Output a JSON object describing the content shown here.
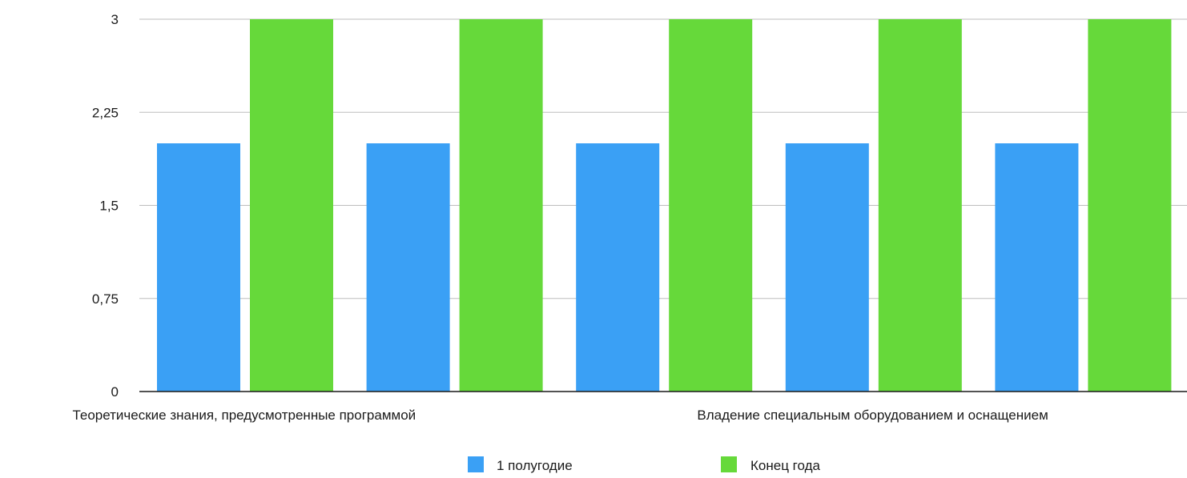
{
  "chart_data": {
    "type": "bar",
    "categories": [
      "Теоретические знания, предусмотренные программой",
      "",
      "",
      "Владение специальным оборудованием и оснащением",
      ""
    ],
    "series": [
      {
        "name": "1 полугодие",
        "color": "#3aa0f5",
        "values": [
          2,
          2,
          2,
          2,
          2
        ]
      },
      {
        "name": "Конец года",
        "color": "#66d93a",
        "values": [
          3,
          3,
          3,
          3,
          3
        ]
      }
    ],
    "ylim": [
      0,
      3
    ],
    "yticks": [
      "0",
      "0,75",
      "1,5",
      "2,25",
      "3"
    ],
    "ytick_values": [
      0,
      0.75,
      1.5,
      2.25,
      3
    ],
    "grid": true,
    "legend_position": "bottom",
    "title": "",
    "xlabel": "",
    "ylabel": ""
  }
}
